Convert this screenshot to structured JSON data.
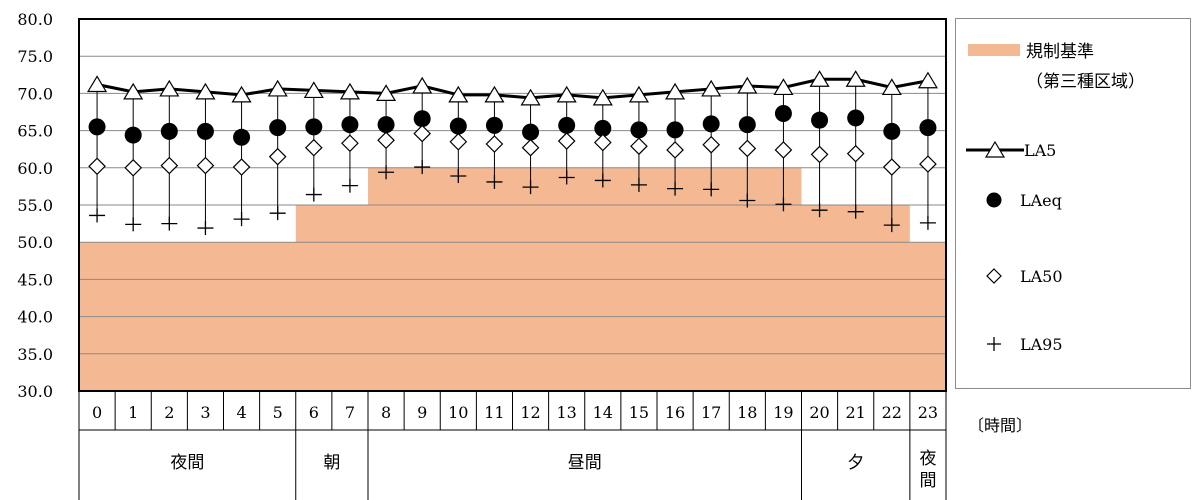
{
  "chart_data": {
    "type": "line",
    "x": [
      "0",
      "1",
      "2",
      "3",
      "4",
      "5",
      "6",
      "7",
      "8",
      "9",
      "10",
      "11",
      "12",
      "13",
      "14",
      "15",
      "16",
      "17",
      "18",
      "19",
      "20",
      "21",
      "22",
      "23"
    ],
    "ylim": [
      30.0,
      80.0
    ],
    "yticks": [
      "30.0",
      "35.0",
      "40.0",
      "45.0",
      "50.0",
      "55.0",
      "60.0",
      "65.0",
      "70.0",
      "75.0",
      "80.0"
    ],
    "grid": true,
    "legend_placement": "right",
    "period_labels": [
      {
        "label": "夜間",
        "from": 0,
        "to": 5
      },
      {
        "label": "朝",
        "from": 6,
        "to": 7
      },
      {
        "label": "昼間",
        "from": 8,
        "to": 19
      },
      {
        "label": "夕",
        "from": 20,
        "to": 22
      },
      {
        "label": "夜間",
        "from": 23,
        "to": 23
      }
    ],
    "unit_label": "〔時間〕",
    "regulation": {
      "name_line1": "規制基準",
      "name_line2": "（第三種区域）",
      "color": "#f4b893",
      "values": [
        50,
        50,
        50,
        50,
        50,
        50,
        55,
        55,
        60,
        60,
        60,
        60,
        60,
        60,
        60,
        60,
        60,
        60,
        60,
        60,
        55,
        55,
        55,
        50
      ]
    },
    "series": [
      {
        "name": "LA5",
        "marker": "triangle",
        "line": true,
        "values": [
          71.2,
          70.2,
          70.6,
          70.2,
          69.8,
          70.6,
          70.4,
          70.2,
          70.0,
          71.0,
          69.8,
          69.8,
          69.4,
          69.8,
          69.4,
          69.8,
          70.2,
          70.6,
          71.0,
          70.8,
          71.9,
          71.9,
          70.8,
          71.7
        ]
      },
      {
        "name": "LAeq",
        "marker": "circle",
        "line": false,
        "values": [
          65.5,
          64.4,
          64.9,
          64.9,
          64.1,
          65.4,
          65.5,
          65.8,
          65.8,
          66.6,
          65.6,
          65.7,
          64.8,
          65.7,
          65.3,
          65.1,
          65.1,
          65.9,
          65.8,
          67.3,
          66.4,
          66.7,
          64.9,
          65.4
        ]
      },
      {
        "name": "LA50",
        "marker": "diamond",
        "line": false,
        "values": [
          60.2,
          60.0,
          60.3,
          60.3,
          60.1,
          61.5,
          62.7,
          63.3,
          63.7,
          64.6,
          63.5,
          63.2,
          62.7,
          63.6,
          63.4,
          62.9,
          62.4,
          63.1,
          62.6,
          62.4,
          61.8,
          61.9,
          60.1,
          60.5
        ]
      },
      {
        "name": "LA95",
        "marker": "plus",
        "line": false,
        "values": [
          53.6,
          52.4,
          52.5,
          51.9,
          53.1,
          53.9,
          56.4,
          57.6,
          59.4,
          60.1,
          58.9,
          58.1,
          57.4,
          58.7,
          58.3,
          57.7,
          57.2,
          57.1,
          55.6,
          55.1,
          54.3,
          54.1,
          52.3,
          52.6
        ]
      }
    ]
  }
}
